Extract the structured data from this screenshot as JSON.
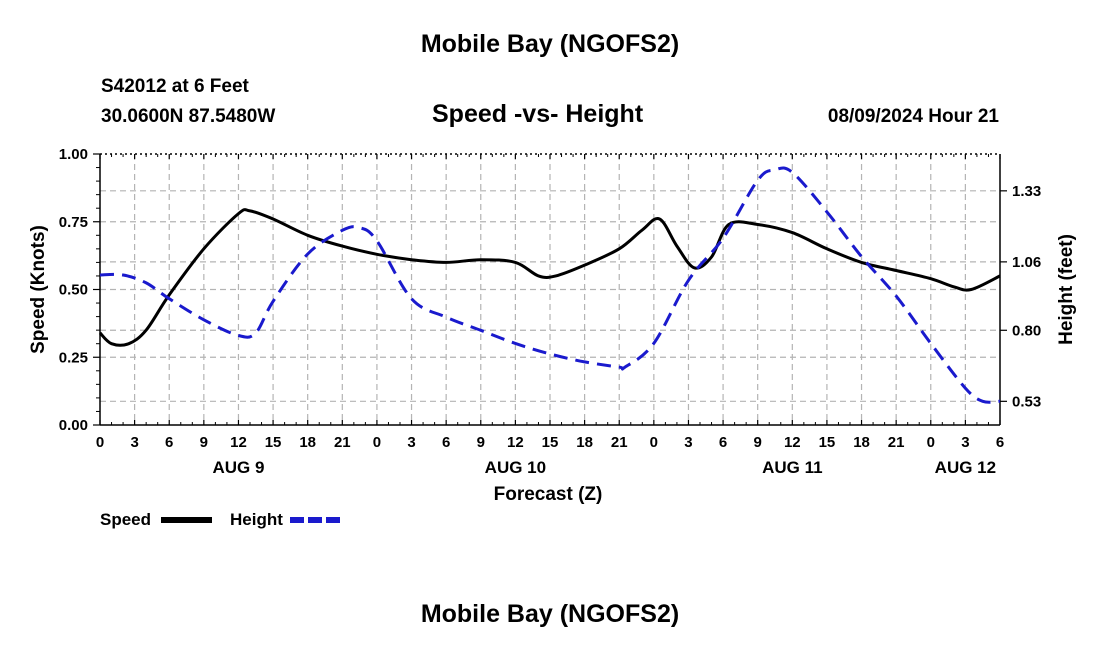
{
  "header": {
    "title": "Mobile Bay (NGOFS2)",
    "station": "S42012 at 6 Feet",
    "coordinates": "30.0600N  87.5480W",
    "date": "08/09/2024 Hour 21"
  },
  "footer": {
    "title": "Mobile Bay (NGOFS2)"
  },
  "chart_data": {
    "type": "line",
    "title": "Speed -vs- Height",
    "xlabel": "Forecast (Z)",
    "ylabel": "Speed (Knots)",
    "y2label": "Height (feet)",
    "ylim": [
      0,
      1
    ],
    "y2lim": [
      0.44,
      1.47
    ],
    "xlim": [
      0,
      78
    ],
    "x_unit": "hours from Aug 9 00Z",
    "grid": true,
    "legend_position": "bottom-left",
    "x_ticks": [
      0,
      3,
      6,
      9,
      12,
      15,
      18,
      21,
      24,
      27,
      30,
      33,
      36,
      39,
      42,
      45,
      48,
      51,
      54,
      57,
      60,
      63,
      66,
      69,
      72,
      75,
      78
    ],
    "x_tick_labels": [
      "0",
      "3",
      "6",
      "9",
      "12",
      "15",
      "18",
      "21",
      "0",
      "3",
      "6",
      "9",
      "12",
      "15",
      "18",
      "21",
      "0",
      "3",
      "6",
      "9",
      "12",
      "15",
      "18",
      "21",
      "0",
      "3",
      "6"
    ],
    "day_labels": [
      {
        "x": 12,
        "label": "AUG 9"
      },
      {
        "x": 36,
        "label": "AUG 10"
      },
      {
        "x": 60,
        "label": "AUG 11"
      },
      {
        "x": 75,
        "label": "AUG 12"
      }
    ],
    "y_ticks": [
      0.0,
      0.25,
      0.5,
      0.75,
      1.0
    ],
    "y_tick_labels": [
      "0.00",
      "0.25",
      "0.50",
      "0.75",
      "1.00"
    ],
    "y2_ticks": [
      0.53,
      0.8,
      1.06,
      1.33
    ],
    "y2_tick_labels": [
      "0.53",
      "0.80",
      "1.06",
      "1.33"
    ],
    "series": [
      {
        "name": "Speed",
        "axis": "left",
        "color": "#000000",
        "style": "solid",
        "x": [
          0,
          1,
          2.5,
          4,
          6,
          9,
          12,
          13,
          15,
          18,
          21,
          24,
          27,
          30,
          33,
          36,
          38,
          39.5,
          42,
          45,
          47,
          48.5,
          50,
          51.5,
          53,
          54.5,
          57,
          60,
          63,
          66,
          69,
          72,
          74,
          75.5,
          78
        ],
        "y": [
          0.34,
          0.3,
          0.3,
          0.35,
          0.48,
          0.65,
          0.78,
          0.79,
          0.76,
          0.7,
          0.66,
          0.63,
          0.61,
          0.6,
          0.61,
          0.6,
          0.55,
          0.55,
          0.59,
          0.65,
          0.72,
          0.76,
          0.66,
          0.58,
          0.62,
          0.74,
          0.74,
          0.71,
          0.65,
          0.6,
          0.57,
          0.54,
          0.51,
          0.5,
          0.55
        ]
      },
      {
        "name": "Height",
        "axis": "right",
        "color": "#1a1acd",
        "style": "dashed",
        "x": [
          0,
          2,
          4,
          6,
          9,
          12,
          13.5,
          15,
          18,
          21,
          22.5,
          24,
          27,
          30,
          33,
          36,
          39,
          42,
          45,
          45.5,
          48,
          51,
          54,
          57,
          58.5,
          60,
          63,
          66,
          69,
          72,
          75,
          76.5,
          78
        ],
        "y": [
          1.01,
          1.01,
          0.98,
          0.92,
          0.84,
          0.78,
          0.79,
          0.91,
          1.09,
          1.18,
          1.19,
          1.14,
          0.92,
          0.85,
          0.8,
          0.75,
          0.71,
          0.68,
          0.66,
          0.66,
          0.75,
          0.99,
          1.15,
          1.37,
          1.41,
          1.4,
          1.25,
          1.08,
          0.93,
          0.75,
          0.58,
          0.53,
          0.53
        ]
      }
    ],
    "legend": [
      {
        "label": "Speed",
        "color": "#000000",
        "style": "solid"
      },
      {
        "label": "Height",
        "color": "#1a1acd",
        "style": "dashed"
      }
    ]
  }
}
